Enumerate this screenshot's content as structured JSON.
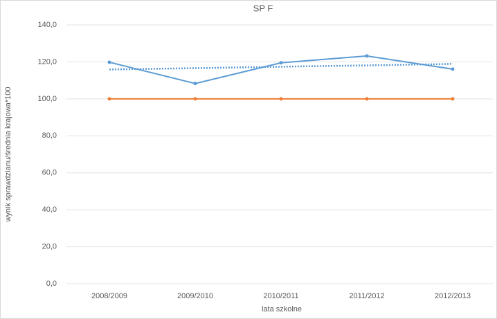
{
  "chart_data": {
    "type": "line",
    "title": "SP F",
    "x_label": "lata szkolne",
    "y_label": "wynik sprawdzianu/średnia krajowa*100",
    "categories": [
      "2008/2009",
      "2009/2010",
      "2010/2011",
      "2011/2012",
      "2012/2013"
    ],
    "series": [
      {
        "color": "#5b9bd5",
        "values": [
          119.8,
          108.3,
          119.5,
          123.2,
          116.1
        ],
        "markers": true
      },
      {
        "color": "#ed7d31",
        "values": [
          100,
          100,
          100,
          100,
          100
        ],
        "markers": true
      },
      {
        "color": "#5b9bd5",
        "values": [
          115.9,
          116.6,
          117.4,
          118.1,
          118.9
        ],
        "dotted": true
      }
    ],
    "ylim": [
      0,
      140
    ],
    "yticks": [
      {
        "value": 0,
        "label": "0,0"
      },
      {
        "value": 20,
        "label": "20,0"
      },
      {
        "value": 40,
        "label": "40,0"
      },
      {
        "value": 60,
        "label": "60,0"
      },
      {
        "value": 80,
        "label": "80,0"
      },
      {
        "value": 100,
        "label": "100,0"
      },
      {
        "value": 120,
        "label": "120,0"
      },
      {
        "value": 140,
        "label": "140,0"
      }
    ],
    "grid": true
  }
}
